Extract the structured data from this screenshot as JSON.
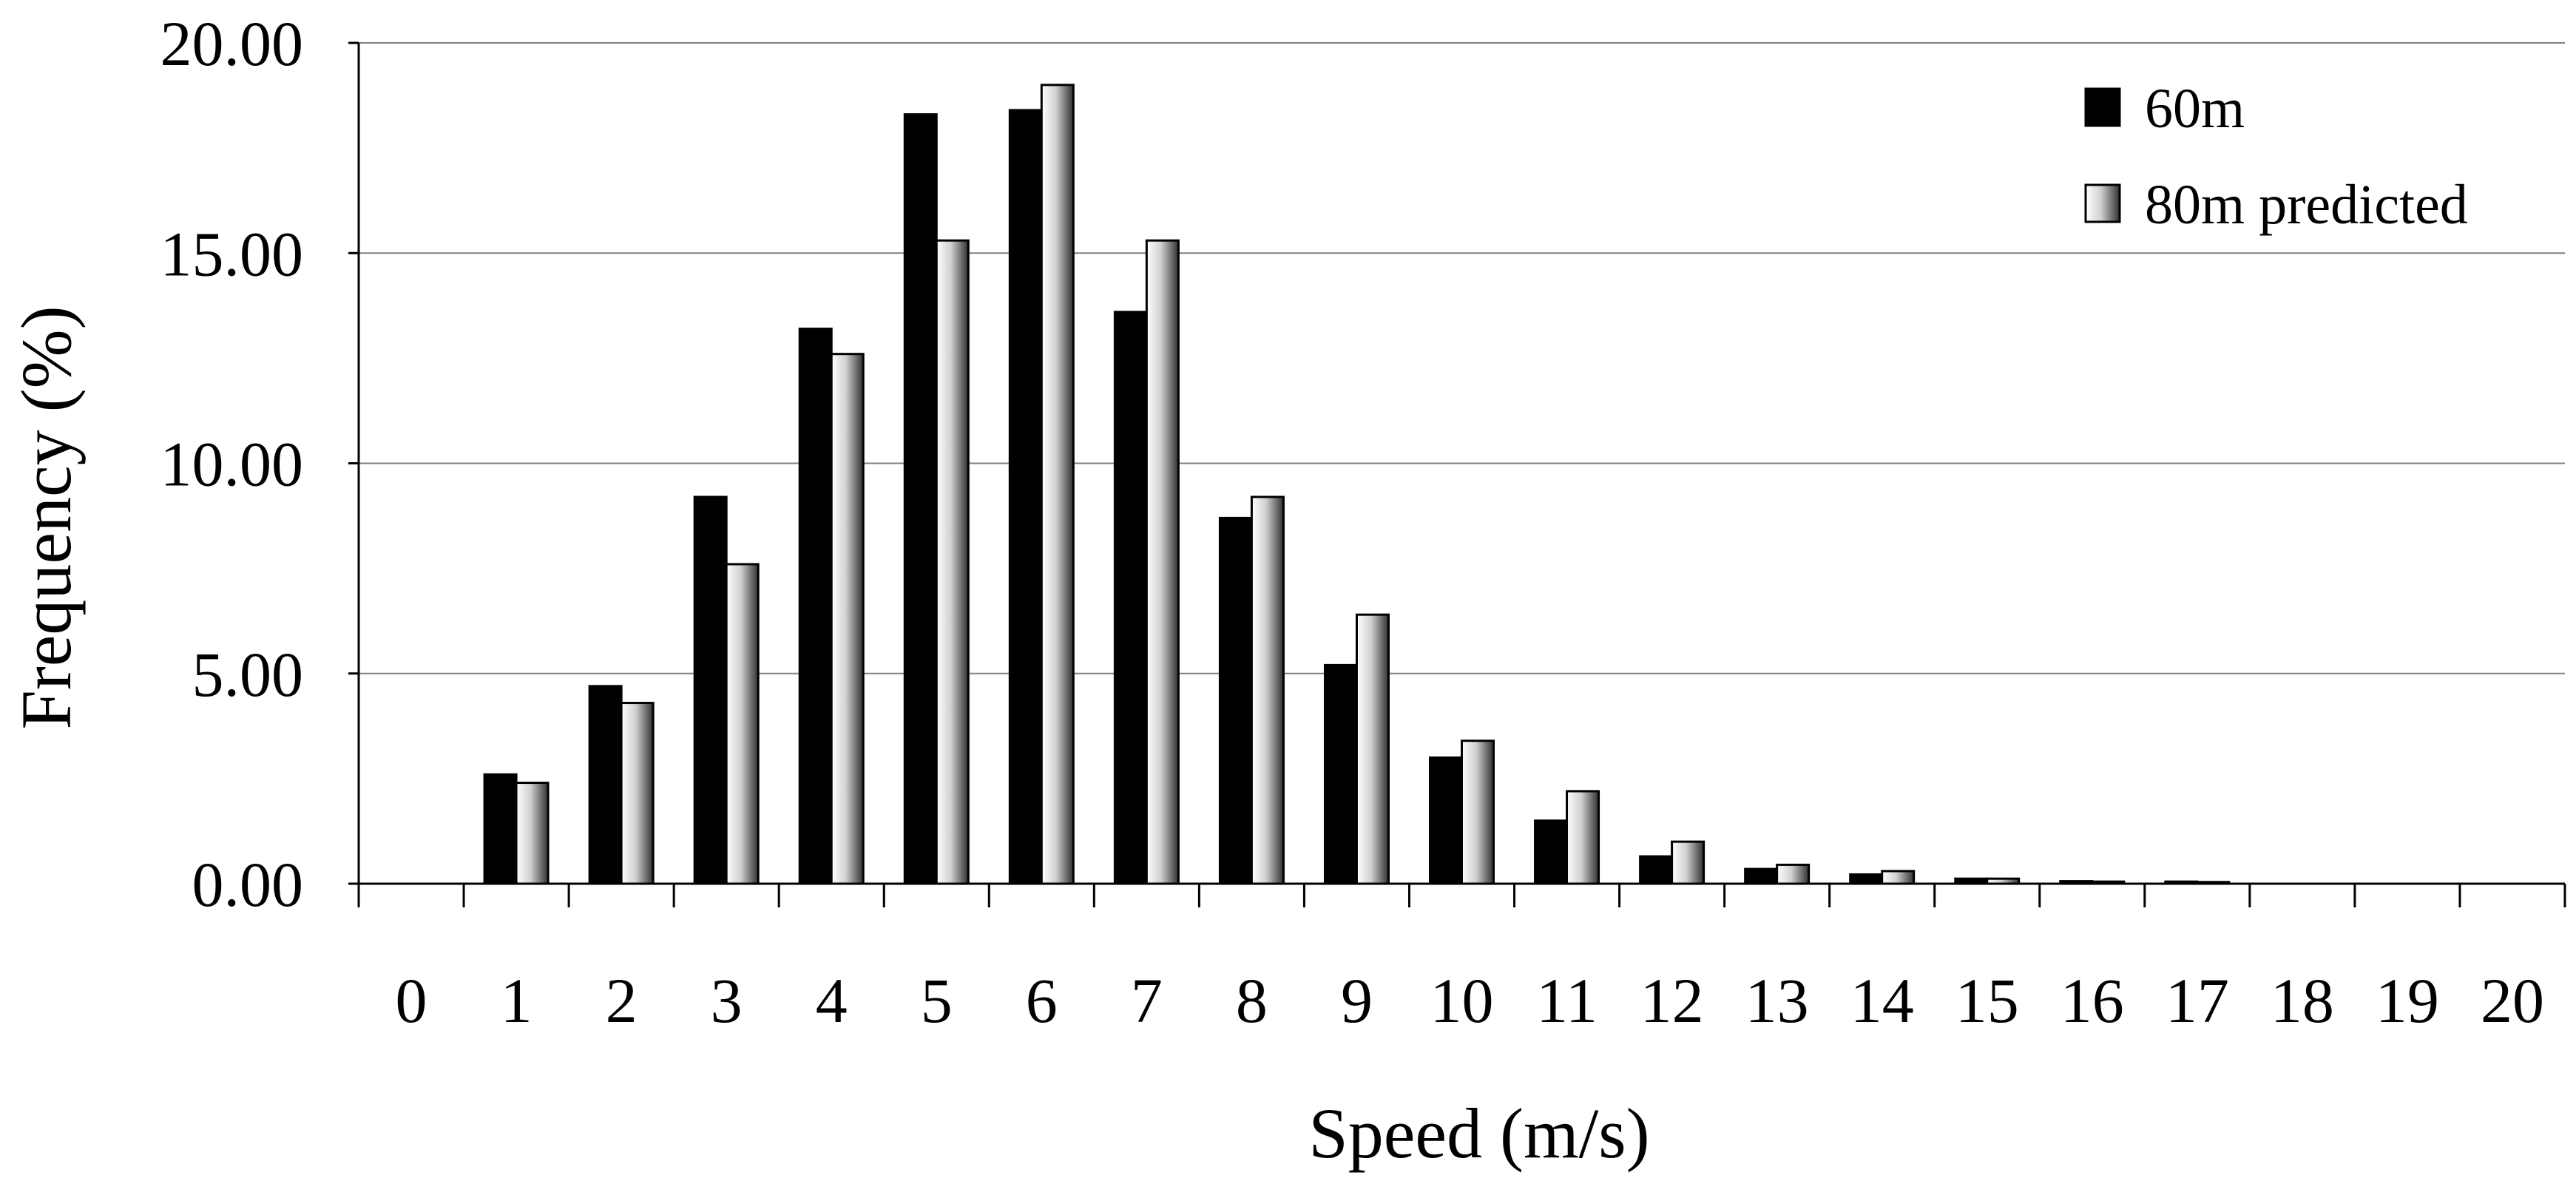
{
  "chart_data": {
    "type": "bar",
    "xlabel": "Speed (m/s)",
    "ylabel": "Frequency (%)",
    "ylim": [
      0,
      20
    ],
    "yticks": [
      "0.00",
      "5.00",
      "10.00",
      "15.00",
      "20.00"
    ],
    "categories": [
      "0",
      "1",
      "2",
      "3",
      "4",
      "5",
      "6",
      "7",
      "8",
      "9",
      "10",
      "11",
      "12",
      "13",
      "14",
      "15",
      "16",
      "17",
      "18",
      "19",
      "20"
    ],
    "grid": "horizontal",
    "legend_position": "top-right",
    "series": [
      {
        "name": "60m",
        "color": "#000000",
        "values": [
          0,
          2.6,
          4.7,
          9.2,
          13.2,
          18.3,
          18.4,
          13.6,
          8.7,
          5.2,
          3.0,
          1.5,
          0.65,
          0.35,
          0.22,
          0.12,
          0.06,
          0.05,
          0,
          0,
          0
        ]
      },
      {
        "name": "80m predicted",
        "color": "gradient-white-gray",
        "values": [
          0,
          2.4,
          4.3,
          7.6,
          12.6,
          15.3,
          19.0,
          15.3,
          9.2,
          6.4,
          3.4,
          2.2,
          1.0,
          0.45,
          0.3,
          0.12,
          0.05,
          0.04,
          0,
          0,
          0
        ]
      }
    ]
  }
}
